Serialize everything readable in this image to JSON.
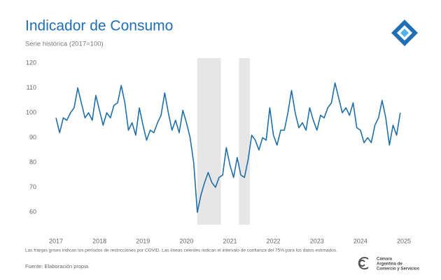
{
  "chart_data": {
    "type": "line",
    "title": "Indicador de Consumo",
    "subtitle": "Serie histórica (2017=100)",
    "categories": [
      "2017",
      null,
      null,
      null,
      null,
      null,
      null,
      null,
      null,
      null,
      null,
      null,
      "2018",
      null,
      null,
      null,
      null,
      null,
      null,
      null,
      null,
      null,
      null,
      null,
      "2019",
      null,
      null,
      null,
      null,
      null,
      null,
      null,
      null,
      null,
      null,
      null,
      "2020",
      null,
      null,
      null,
      null,
      null,
      null,
      null,
      null,
      null,
      null,
      null,
      "2021",
      null,
      null,
      null,
      null,
      null,
      null,
      null,
      null,
      null,
      null,
      null,
      "2022",
      null,
      null,
      null,
      null,
      null,
      null,
      null,
      null,
      null,
      null,
      null,
      "2023",
      null,
      null,
      null,
      null,
      null,
      null,
      null,
      null,
      null,
      null,
      null,
      "2024",
      null,
      null,
      null,
      null,
      null,
      null,
      null,
      null,
      null,
      null,
      null,
      "2025"
    ],
    "series": [
      {
        "name": "Indicador de Consumo",
        "color": "#1f6fa8",
        "values": [
          98,
          92,
          98,
          97,
          100,
          102,
          110,
          104,
          98,
          100,
          97,
          107,
          101,
          95,
          100,
          98,
          103,
          104,
          111,
          104,
          93,
          96,
          91,
          102,
          95,
          89,
          93,
          92,
          96,
          99,
          108,
          100,
          93,
          97,
          92,
          101,
          96,
          90,
          80,
          60,
          67,
          72,
          76,
          72,
          70,
          74,
          75,
          86,
          79,
          74,
          82,
          75,
          74,
          81,
          91,
          89,
          85,
          90,
          89,
          102,
          91,
          87,
          93,
          93,
          100,
          109,
          100,
          94,
          96,
          93,
          102,
          97,
          93,
          99,
          98,
          102,
          104,
          112,
          106,
          100,
          102,
          99,
          104,
          94,
          93,
          88,
          90,
          88,
          95,
          98,
          105,
          98,
          87,
          95,
          91,
          100,
          null
        ]
      }
    ],
    "shaded_periods": [
      [
        39,
        45.5
      ],
      [
        50.5,
        53.5
      ]
    ],
    "shade_color": "#e6e6e6",
    "ylim": [
      55,
      122
    ],
    "yticks": [
      60,
      70,
      80,
      90,
      100,
      110,
      120
    ],
    "footnote": "Las franjas grises indican los períodos de restricciones por COVID. Las líneas celestes indican el intervalo de confianza del 75% para los datos estimados.",
    "source": "Fuente: Elaboración propia",
    "logo_text": [
      "Cámara",
      "Argentina de",
      "Comercio y Servicios"
    ]
  }
}
